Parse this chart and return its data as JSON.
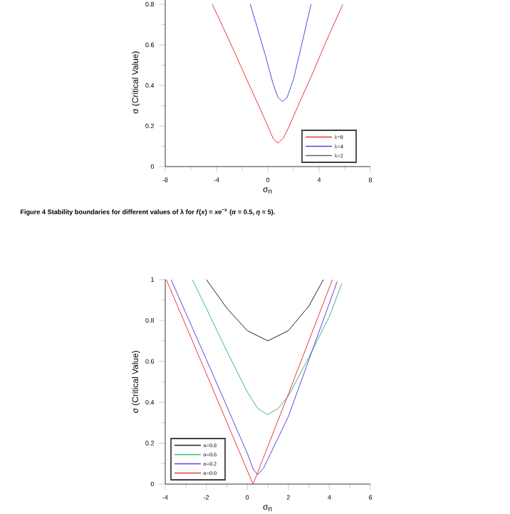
{
  "chart_data": [
    {
      "type": "line",
      "xlabel": "σ$_{n}$",
      "ylabel": "σ (Critical Value)",
      "xlim": [
        -8,
        8
      ],
      "ylim": [
        0,
        0.83
      ],
      "xticks": [
        -8,
        -4,
        0,
        4,
        8
      ],
      "yticks": [
        0,
        0.2,
        0.4,
        0.6,
        0.8
      ],
      "legend": "bottom right",
      "grid": false,
      "marker": "none",
      "line_style": "solid",
      "annotations": [
        "Figure 4  Stability boundaries for different values of λ for *f*(*x*) = *xe*$^{−x}$ (*α* = 0.5, *η* = 5)."
      ],
      "series": [
        {
          "name": "λ=8",
          "color": "#e8383d",
          "x": [
            -4.33,
            -3,
            -2,
            -1,
            0,
            0.4,
            0.78,
            1.2,
            1.6,
            2.5,
            3.5,
            4.5,
            5.85
          ],
          "values": [
            0.8,
            0.62,
            0.48,
            0.34,
            0.2,
            0.14,
            0.115,
            0.14,
            0.19,
            0.32,
            0.46,
            0.61,
            0.8
          ]
        },
        {
          "name": "λ=4",
          "color": "#4a4ae0",
          "x": [
            -1.37,
            -0.8,
            -0.2,
            0.4,
            0.8,
            1.15,
            1.5,
            2,
            2.6,
            3.37
          ],
          "values": [
            0.8,
            0.68,
            0.55,
            0.41,
            0.34,
            0.32,
            0.34,
            0.43,
            0.59,
            0.8
          ]
        },
        {
          "name": "λ=2",
          "color": "#666666"
        }
      ]
    },
    {
      "type": "line",
      "xlabel": "σ$_{n}$",
      "ylabel": "σ (Critical Value)",
      "xlim": [
        -4,
        6
      ],
      "ylim": [
        0,
        1
      ],
      "xticks": [
        -4,
        -2,
        0,
        2,
        4,
        6
      ],
      "yticks": [
        0,
        0.2,
        0.4,
        0.6,
        0.8,
        1
      ],
      "legend": "bottom left",
      "grid": false,
      "marker": "none",
      "line_style": "solid",
      "series": [
        {
          "name": "α=0.8",
          "color": "#222222",
          "x": [
            -2,
            -1,
            0,
            1,
            2,
            3,
            3.71
          ],
          "values": [
            1.0,
            0.86,
            0.75,
            0.7,
            0.75,
            0.87,
            1.0
          ]
        },
        {
          "name": "α=0.6",
          "color": "#3cb878",
          "x": [
            -2.68,
            -2,
            -1,
            0,
            0.5,
            0.98,
            1.5,
            2,
            3,
            4,
            4.61
          ],
          "values": [
            1.0,
            0.86,
            0.65,
            0.45,
            0.37,
            0.34,
            0.37,
            0.43,
            0.62,
            0.82,
            0.98
          ]
        },
        {
          "name": "α=0.2",
          "color": "#6040e0",
          "x": [
            -3.72,
            -2,
            0,
            0.3,
            0.51,
            0.8,
            2,
            4.38
          ],
          "values": [
            1.0,
            0.61,
            0.15,
            0.07,
            0.046,
            0.08,
            0.33,
            0.99
          ]
        },
        {
          "name": "α=0.0",
          "color": "#e8383d",
          "x": [
            -3.95,
            -2,
            0.28,
            2,
            4.15
          ],
          "values": [
            1.0,
            0.54,
            0.0,
            0.44,
            1.0
          ]
        }
      ]
    }
  ]
}
